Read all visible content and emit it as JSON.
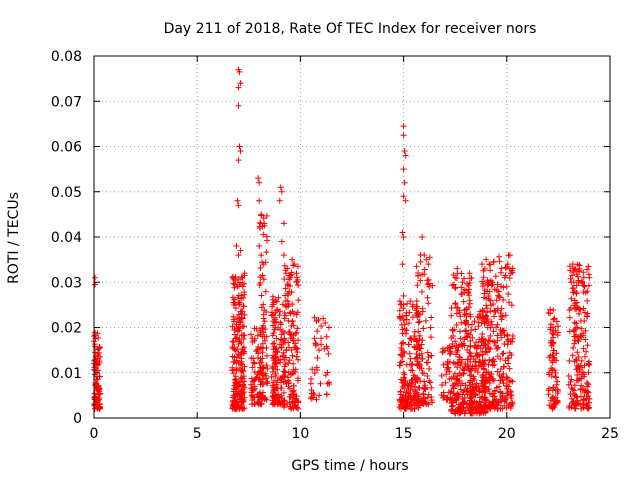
{
  "chart_data": {
    "type": "scatter",
    "title": "Day 211 of 2018, Rate Of TEC Index for receiver nors",
    "xlabel": "GPS time / hours",
    "ylabel": "ROTI / TECUs",
    "xlim": [
      0,
      25
    ],
    "ylim": [
      0,
      0.08
    ],
    "xticks": [
      "0",
      "5",
      "10",
      "15",
      "20",
      "25"
    ],
    "yticks": [
      "0",
      "0.01",
      "0.02",
      "0.03",
      "0.04",
      "0.05",
      "0.06",
      "0.07",
      "0.08"
    ],
    "grid": true,
    "marker": "plus",
    "color": "#ff0000",
    "clusters": [
      {
        "x": [
          0.0,
          0.3
        ],
        "y": [
          0.002,
          0.019
        ],
        "n": 90
      },
      {
        "x": [
          6.7,
          7.3
        ],
        "y": [
          0.002,
          0.032
        ],
        "n": 220
      },
      {
        "x": [
          7.6,
          8.2
        ],
        "y": [
          0.003,
          0.02
        ],
        "n": 90
      },
      {
        "x": [
          8.0,
          8.4
        ],
        "y": [
          0.004,
          0.045
        ],
        "n": 70
      },
      {
        "x": [
          8.6,
          9.2
        ],
        "y": [
          0.003,
          0.027
        ],
        "n": 140
      },
      {
        "x": [
          9.2,
          9.9
        ],
        "y": [
          0.002,
          0.035
        ],
        "n": 150
      },
      {
        "x": [
          10.5,
          11.4
        ],
        "y": [
          0.004,
          0.023
        ],
        "n": 40
      },
      {
        "x": [
          14.8,
          15.8
        ],
        "y": [
          0.002,
          0.026
        ],
        "n": 200
      },
      {
        "x": [
          15.6,
          16.4
        ],
        "y": [
          0.003,
          0.037
        ],
        "n": 90
      },
      {
        "x": [
          16.8,
          17.3
        ],
        "y": [
          0.004,
          0.016
        ],
        "n": 40
      },
      {
        "x": [
          17.3,
          18.3
        ],
        "y": [
          0.001,
          0.032
        ],
        "n": 220
      },
      {
        "x": [
          18.2,
          19.0
        ],
        "y": [
          0.001,
          0.024
        ],
        "n": 160
      },
      {
        "x": [
          18.8,
          19.6
        ],
        "y": [
          0.002,
          0.035
        ],
        "n": 180
      },
      {
        "x": [
          19.6,
          20.3
        ],
        "y": [
          0.002,
          0.036
        ],
        "n": 110
      },
      {
        "x": [
          22.0,
          22.5
        ],
        "y": [
          0.002,
          0.024
        ],
        "n": 80
      },
      {
        "x": [
          23.0,
          23.7
        ],
        "y": [
          0.002,
          0.034
        ],
        "n": 130
      },
      {
        "x": [
          23.7,
          24.0
        ],
        "y": [
          0.002,
          0.033
        ],
        "n": 60
      }
    ],
    "points": [
      [
        0.05,
        0.031
      ],
      [
        0.05,
        0.0295
      ],
      [
        0.0,
        0.017
      ],
      [
        0.1,
        0.012
      ],
      [
        7.0,
        0.077
      ],
      [
        7.05,
        0.0765
      ],
      [
        7.0,
        0.073
      ],
      [
        7.1,
        0.074
      ],
      [
        7.0,
        0.069
      ],
      [
        7.05,
        0.06
      ],
      [
        7.1,
        0.059
      ],
      [
        7.0,
        0.057
      ],
      [
        6.95,
        0.048
      ],
      [
        7.0,
        0.047
      ],
      [
        6.9,
        0.038
      ],
      [
        7.0,
        0.036
      ],
      [
        7.1,
        0.037
      ],
      [
        7.2,
        0.031
      ],
      [
        7.3,
        0.032
      ],
      [
        7.95,
        0.053
      ],
      [
        8.0,
        0.052
      ],
      [
        8.0,
        0.048
      ],
      [
        8.1,
        0.045
      ],
      [
        8.05,
        0.043
      ],
      [
        8.0,
        0.038
      ],
      [
        8.1,
        0.036
      ],
      [
        8.2,
        0.034
      ],
      [
        9.05,
        0.051
      ],
      [
        9.1,
        0.05
      ],
      [
        9.0,
        0.048
      ],
      [
        9.2,
        0.043
      ],
      [
        9.1,
        0.039
      ],
      [
        9.2,
        0.036
      ],
      [
        9.3,
        0.032
      ],
      [
        9.6,
        0.035
      ],
      [
        9.7,
        0.034
      ],
      [
        9.5,
        0.031
      ],
      [
        10.75,
        0.016
      ],
      [
        10.9,
        0.015
      ],
      [
        11.1,
        0.022
      ],
      [
        11.2,
        0.021
      ],
      [
        15.0,
        0.0645
      ],
      [
        15.0,
        0.0625
      ],
      [
        15.05,
        0.059
      ],
      [
        15.1,
        0.058
      ],
      [
        15.0,
        0.055
      ],
      [
        15.05,
        0.052
      ],
      [
        15.0,
        0.049
      ],
      [
        15.1,
        0.048
      ],
      [
        14.95,
        0.041
      ],
      [
        15.0,
        0.04
      ],
      [
        14.95,
        0.034
      ],
      [
        15.0,
        0.027
      ],
      [
        15.9,
        0.04
      ],
      [
        16.0,
        0.036
      ],
      [
        16.1,
        0.035
      ],
      [
        16.2,
        0.034
      ],
      [
        17.6,
        0.033
      ],
      [
        17.5,
        0.031
      ],
      [
        18.2,
        0.032
      ],
      [
        18.8,
        0.034
      ],
      [
        19.0,
        0.035
      ],
      [
        19.15,
        0.034
      ],
      [
        19.3,
        0.03
      ],
      [
        20.15,
        0.036
      ],
      [
        20.05,
        0.034
      ],
      [
        20.2,
        0.032
      ],
      [
        20.0,
        0.029
      ],
      [
        22.1,
        0.024
      ],
      [
        23.2,
        0.034
      ],
      [
        23.25,
        0.03
      ],
      [
        23.3,
        0.028
      ],
      [
        23.5,
        0.023
      ],
      [
        23.95,
        0.0335
      ],
      [
        24.0,
        0.031
      ],
      [
        23.9,
        0.028
      ]
    ]
  }
}
